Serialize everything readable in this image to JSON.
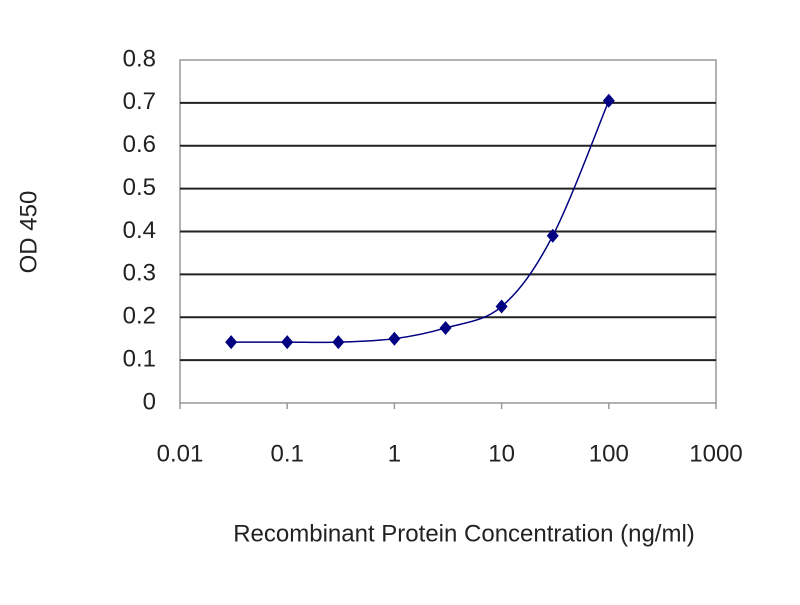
{
  "chart_data": {
    "type": "line",
    "x": [
      0.03,
      0.1,
      0.3,
      1,
      3,
      10,
      30,
      100
    ],
    "values": [
      0.142,
      0.142,
      0.142,
      0.15,
      0.175,
      0.225,
      0.39,
      0.705
    ],
    "color": "#000080",
    "xlabel": "Recombinant Protein Concentration (ng/ml)",
    "ylabel": "OD 450",
    "log_x": true,
    "xlim": [
      0.01,
      1000
    ],
    "xticks": [
      0.01,
      0.1,
      1,
      10,
      100,
      1000
    ],
    "ylim": [
      0,
      0.8
    ],
    "yticks": [
      0,
      0.1,
      0.2,
      0.3,
      0.4,
      0.5,
      0.6,
      0.7,
      0.8
    ],
    "grid": true
  }
}
